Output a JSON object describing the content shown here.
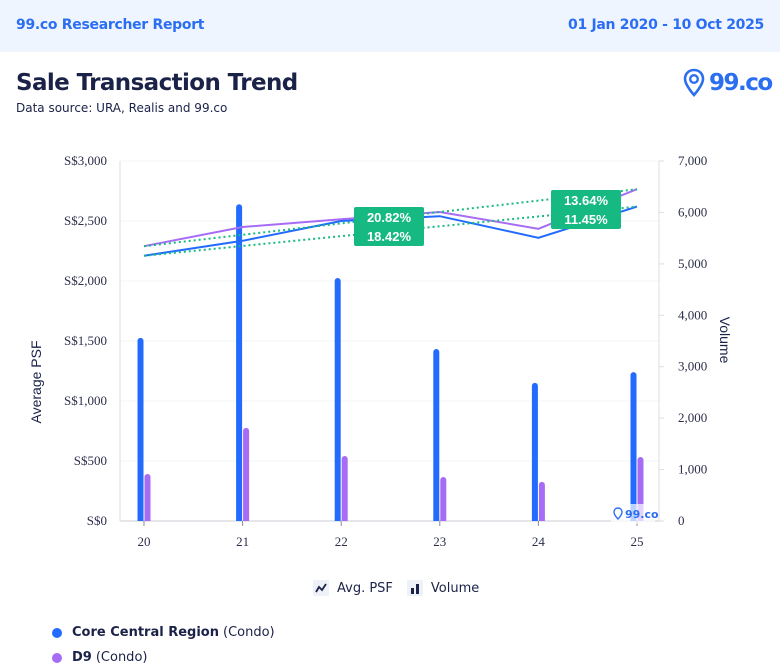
{
  "header": {
    "report_title": "99.co Researcher Report",
    "date_range": "01 Jan 2020 - 10 Oct 2025"
  },
  "page": {
    "title": "Sale Transaction Trend",
    "subtitle": "Data source: URA, Realis and 99.co",
    "logo_text": "99.co",
    "watermark_text": "99.co"
  },
  "legend_types": [
    {
      "icon": "line-chart-icon",
      "label": "Avg. PSF"
    },
    {
      "icon": "bar-chart-icon",
      "label": "Volume"
    }
  ],
  "series_legend": [
    {
      "name": "Core Central Region",
      "suffix": "(Condo)",
      "color": "#236bfe"
    },
    {
      "name": "D9",
      "suffix": "(Condo)",
      "color": "#a66cf5"
    }
  ],
  "chart_data": {
    "type": "bar+line",
    "title": "Sale Transaction Trend",
    "categories": [
      "20",
      "21",
      "22",
      "23",
      "24",
      "25"
    ],
    "xlabel": "",
    "ylabel_left": "Average PSF",
    "ylabel_right": "Volume",
    "ylim_left": [
      0,
      3000
    ],
    "ylim_right": [
      0,
      7000
    ],
    "left_ticks": [
      "S$0",
      "S$500",
      "S$1,000",
      "S$1,500",
      "S$2,000",
      "S$2,500",
      "S$3,000"
    ],
    "left_tick_values": [
      0,
      500,
      1000,
      1500,
      2000,
      2500,
      3000
    ],
    "right_ticks": [
      "0",
      "1,000",
      "2,000",
      "3,000",
      "4,000",
      "5,000",
      "6,000",
      "7,000"
    ],
    "right_tick_values": [
      0,
      1000,
      2000,
      3000,
      4000,
      5000,
      6000,
      7000
    ],
    "grid": true,
    "series": [
      {
        "name": "Core Central Region (Condo)",
        "color": "#236bfe",
        "volume": [
          3560,
          6160,
          4725,
          3345,
          2685,
          2895
        ],
        "avg_psf": [
          2210,
          2335,
          2500,
          2540,
          2360,
          2620
        ],
        "trend_change": "18.42%",
        "trend_change_recent": "11.45%"
      },
      {
        "name": "D9 (Condo)",
        "color": "#a66cf5",
        "volume": [
          915,
          1810,
          1265,
          855,
          760,
          1245
        ],
        "avg_psf": [
          2290,
          2450,
          2515,
          2575,
          2435,
          2765
        ],
        "trend_change": "20.82%",
        "trend_change_recent": "13.64%"
      }
    ],
    "trendline_color": "#16b981",
    "badges": [
      {
        "lines": [
          "20.82%",
          "18.42%"
        ],
        "anchor_category": "22"
      },
      {
        "lines": [
          "13.64%",
          "11.45%"
        ],
        "anchor_category": "24"
      }
    ]
  }
}
